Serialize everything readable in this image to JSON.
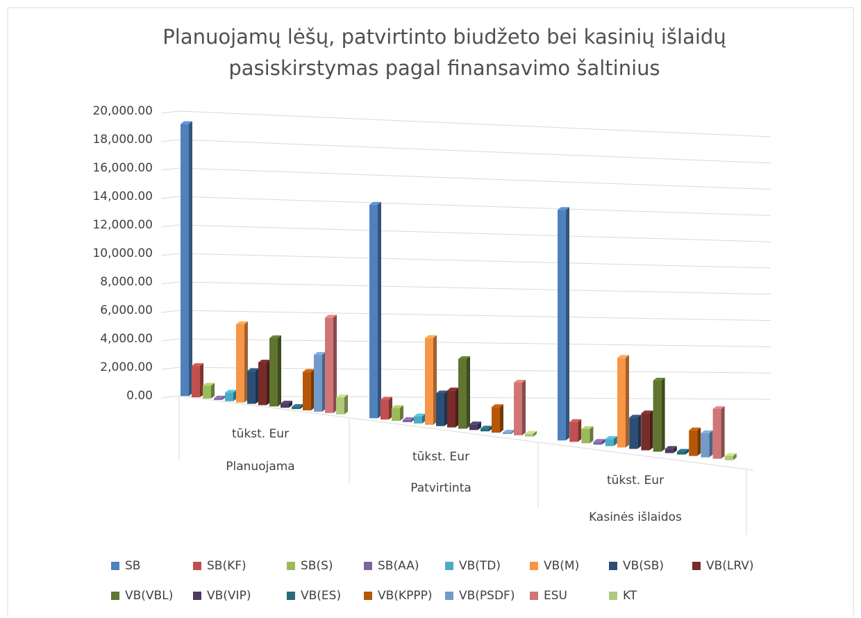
{
  "chart_data": {
    "type": "bar3d",
    "title": [
      "Planuojamų  lėšų, patvirtinto biudžeto bei kasinių išlaidų",
      "pasiskirstymas pagal finansavimo šaltinius"
    ],
    "categories": [
      "Planuojama",
      "Patvirtinta",
      "Kasinės išlaidos"
    ],
    "subcategories": [
      "tūkst. Eur",
      "tūkst. Eur",
      "tūkst. Eur"
    ],
    "ylim": [
      0,
      20000
    ],
    "yticks": [
      {
        "value": 0,
        "label": "0.00"
      },
      {
        "value": 2000,
        "label": "2,000.00"
      },
      {
        "value": 4000,
        "label": "4,000.00"
      },
      {
        "value": 6000,
        "label": "6,000.00"
      },
      {
        "value": 8000,
        "label": "8,000.00"
      },
      {
        "value": 10000,
        "label": "10,000.00"
      },
      {
        "value": 12000,
        "label": "12,000.00"
      },
      {
        "value": 14000,
        "label": "14,000.00"
      },
      {
        "value": 16000,
        "label": "16,000.00"
      },
      {
        "value": 18000,
        "label": "18,000.00"
      },
      {
        "value": 20000,
        "label": "20,000.00"
      }
    ],
    "grid": true,
    "legend": "bottom",
    "series": [
      {
        "name": "SB",
        "color": "#4f81bd",
        "values": [
          19100,
          15000,
          16200
        ]
      },
      {
        "name": "SB(KF)",
        "color": "#c0504d",
        "values": [
          2200,
          1400,
          1400
        ]
      },
      {
        "name": "SB(S)",
        "color": "#9bbb59",
        "values": [
          900,
          900,
          1000
        ]
      },
      {
        "name": "SB(AA)",
        "color": "#8064a2",
        "values": [
          100,
          150,
          200
        ]
      },
      {
        "name": "VB(TD)",
        "color": "#4bacc6",
        "values": [
          600,
          500,
          500
        ]
      },
      {
        "name": "VB(M)",
        "color": "#f79646",
        "values": [
          5500,
          6100,
          6300
        ]
      },
      {
        "name": "VB(SB)",
        "color": "#2c4d75",
        "values": [
          2300,
          2300,
          2200
        ]
      },
      {
        "name": "VB(LRV)",
        "color": "#772c2a",
        "values": [
          3000,
          2600,
          2600
        ]
      },
      {
        "name": "VB(VBL)",
        "color": "#5f7530",
        "values": [
          4800,
          4900,
          5000
        ]
      },
      {
        "name": "VB(VIP)",
        "color": "#4d3b62",
        "values": [
          300,
          400,
          300
        ]
      },
      {
        "name": "VB(ES)",
        "color": "#276a7c",
        "values": [
          150,
          200,
          200
        ]
      },
      {
        "name": "VB(KPPP)",
        "color": "#b65708",
        "values": [
          2700,
          1800,
          1800
        ]
      },
      {
        "name": "VB(PSDF)",
        "color": "#729aca",
        "values": [
          4000,
          100,
          1700
        ]
      },
      {
        "name": "ESU",
        "color": "#d07676",
        "values": [
          6700,
          3700,
          3500
        ]
      },
      {
        "name": "KT",
        "color": "#afc97a",
        "values": [
          1200,
          200,
          300
        ]
      }
    ]
  }
}
